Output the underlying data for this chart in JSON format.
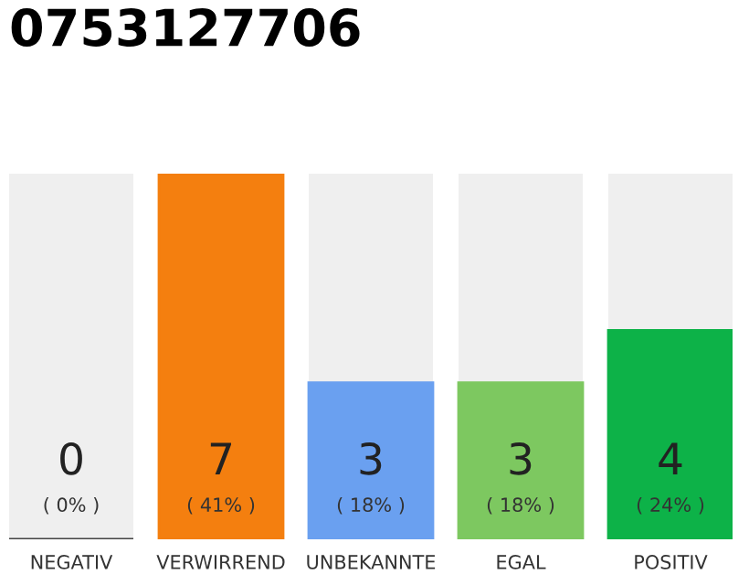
{
  "chart_data": {
    "type": "bar",
    "title": "0753127706",
    "categories": [
      "NEGATIV",
      "VERWIRREND",
      "UNBEKANNTE",
      "EGAL",
      "POSITIV"
    ],
    "values": [
      0,
      7,
      3,
      3,
      4
    ],
    "colors": [
      "#444444",
      "#f47f0f",
      "#6aa0f0",
      "#7dc860",
      "#0db248"
    ],
    "value_labels": [
      "0",
      "7",
      "3",
      "3",
      "4"
    ],
    "annotations": [
      "( 0% )",
      "( 41% )",
      "( 18% )",
      "( 18% )",
      "( 24% )"
    ],
    "grid": false,
    "legend": false
  }
}
